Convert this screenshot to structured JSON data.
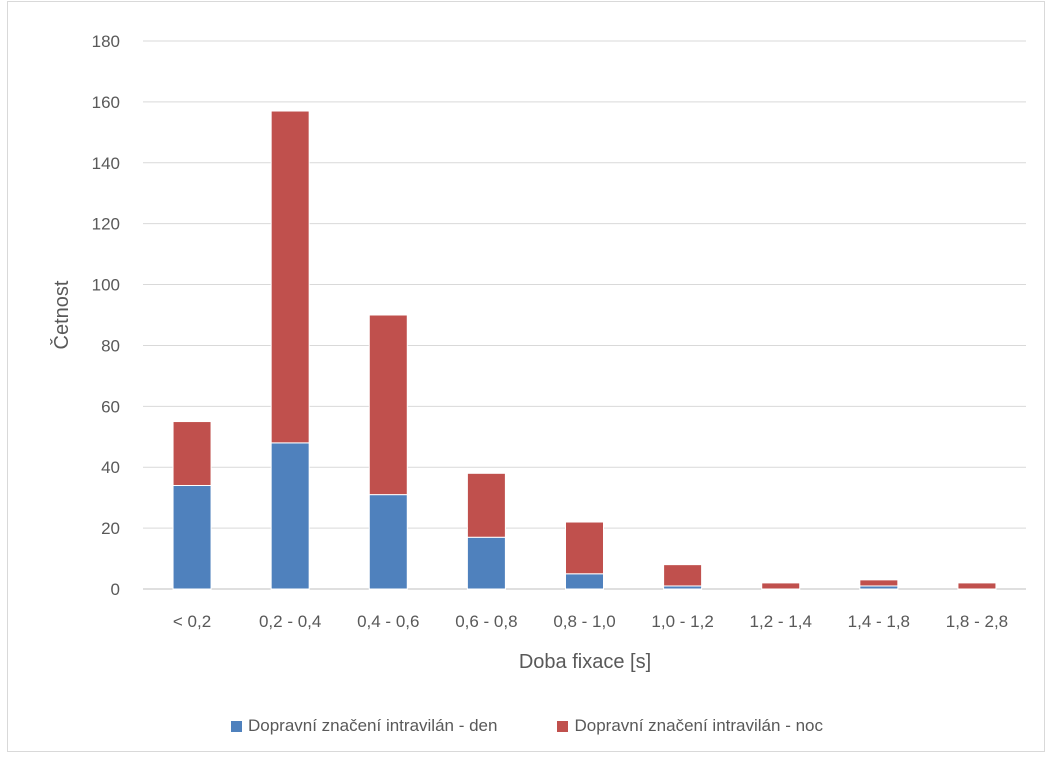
{
  "chart_data": {
    "type": "bar",
    "stacked": true,
    "categories": [
      "< 0,2",
      "0,2 - 0,4",
      "0,4 - 0,6",
      "0,6 - 0,8",
      "0,8 - 1,0",
      "1,0 - 1,2",
      "1,2 - 1,4",
      "1,4 - 1,8",
      "1,8 - 2,8"
    ],
    "series": [
      {
        "name": "Dopravní značení intravilán - den",
        "color": "#4f81bd",
        "values": [
          34,
          48,
          31,
          17,
          5,
          1,
          0,
          1,
          0
        ]
      },
      {
        "name": "Dopravní značení intravilán - noc",
        "color": "#c0504d",
        "values": [
          21,
          109,
          59,
          21,
          17,
          7,
          2,
          2,
          2
        ]
      }
    ],
    "xlabel": "Doba fixace [s]",
    "ylabel": "Četnost",
    "ylim": [
      0,
      180
    ],
    "yticks": [
      0,
      20,
      40,
      60,
      80,
      100,
      120,
      140,
      160,
      180
    ],
    "grid": true,
    "legend_position": "bottom"
  }
}
